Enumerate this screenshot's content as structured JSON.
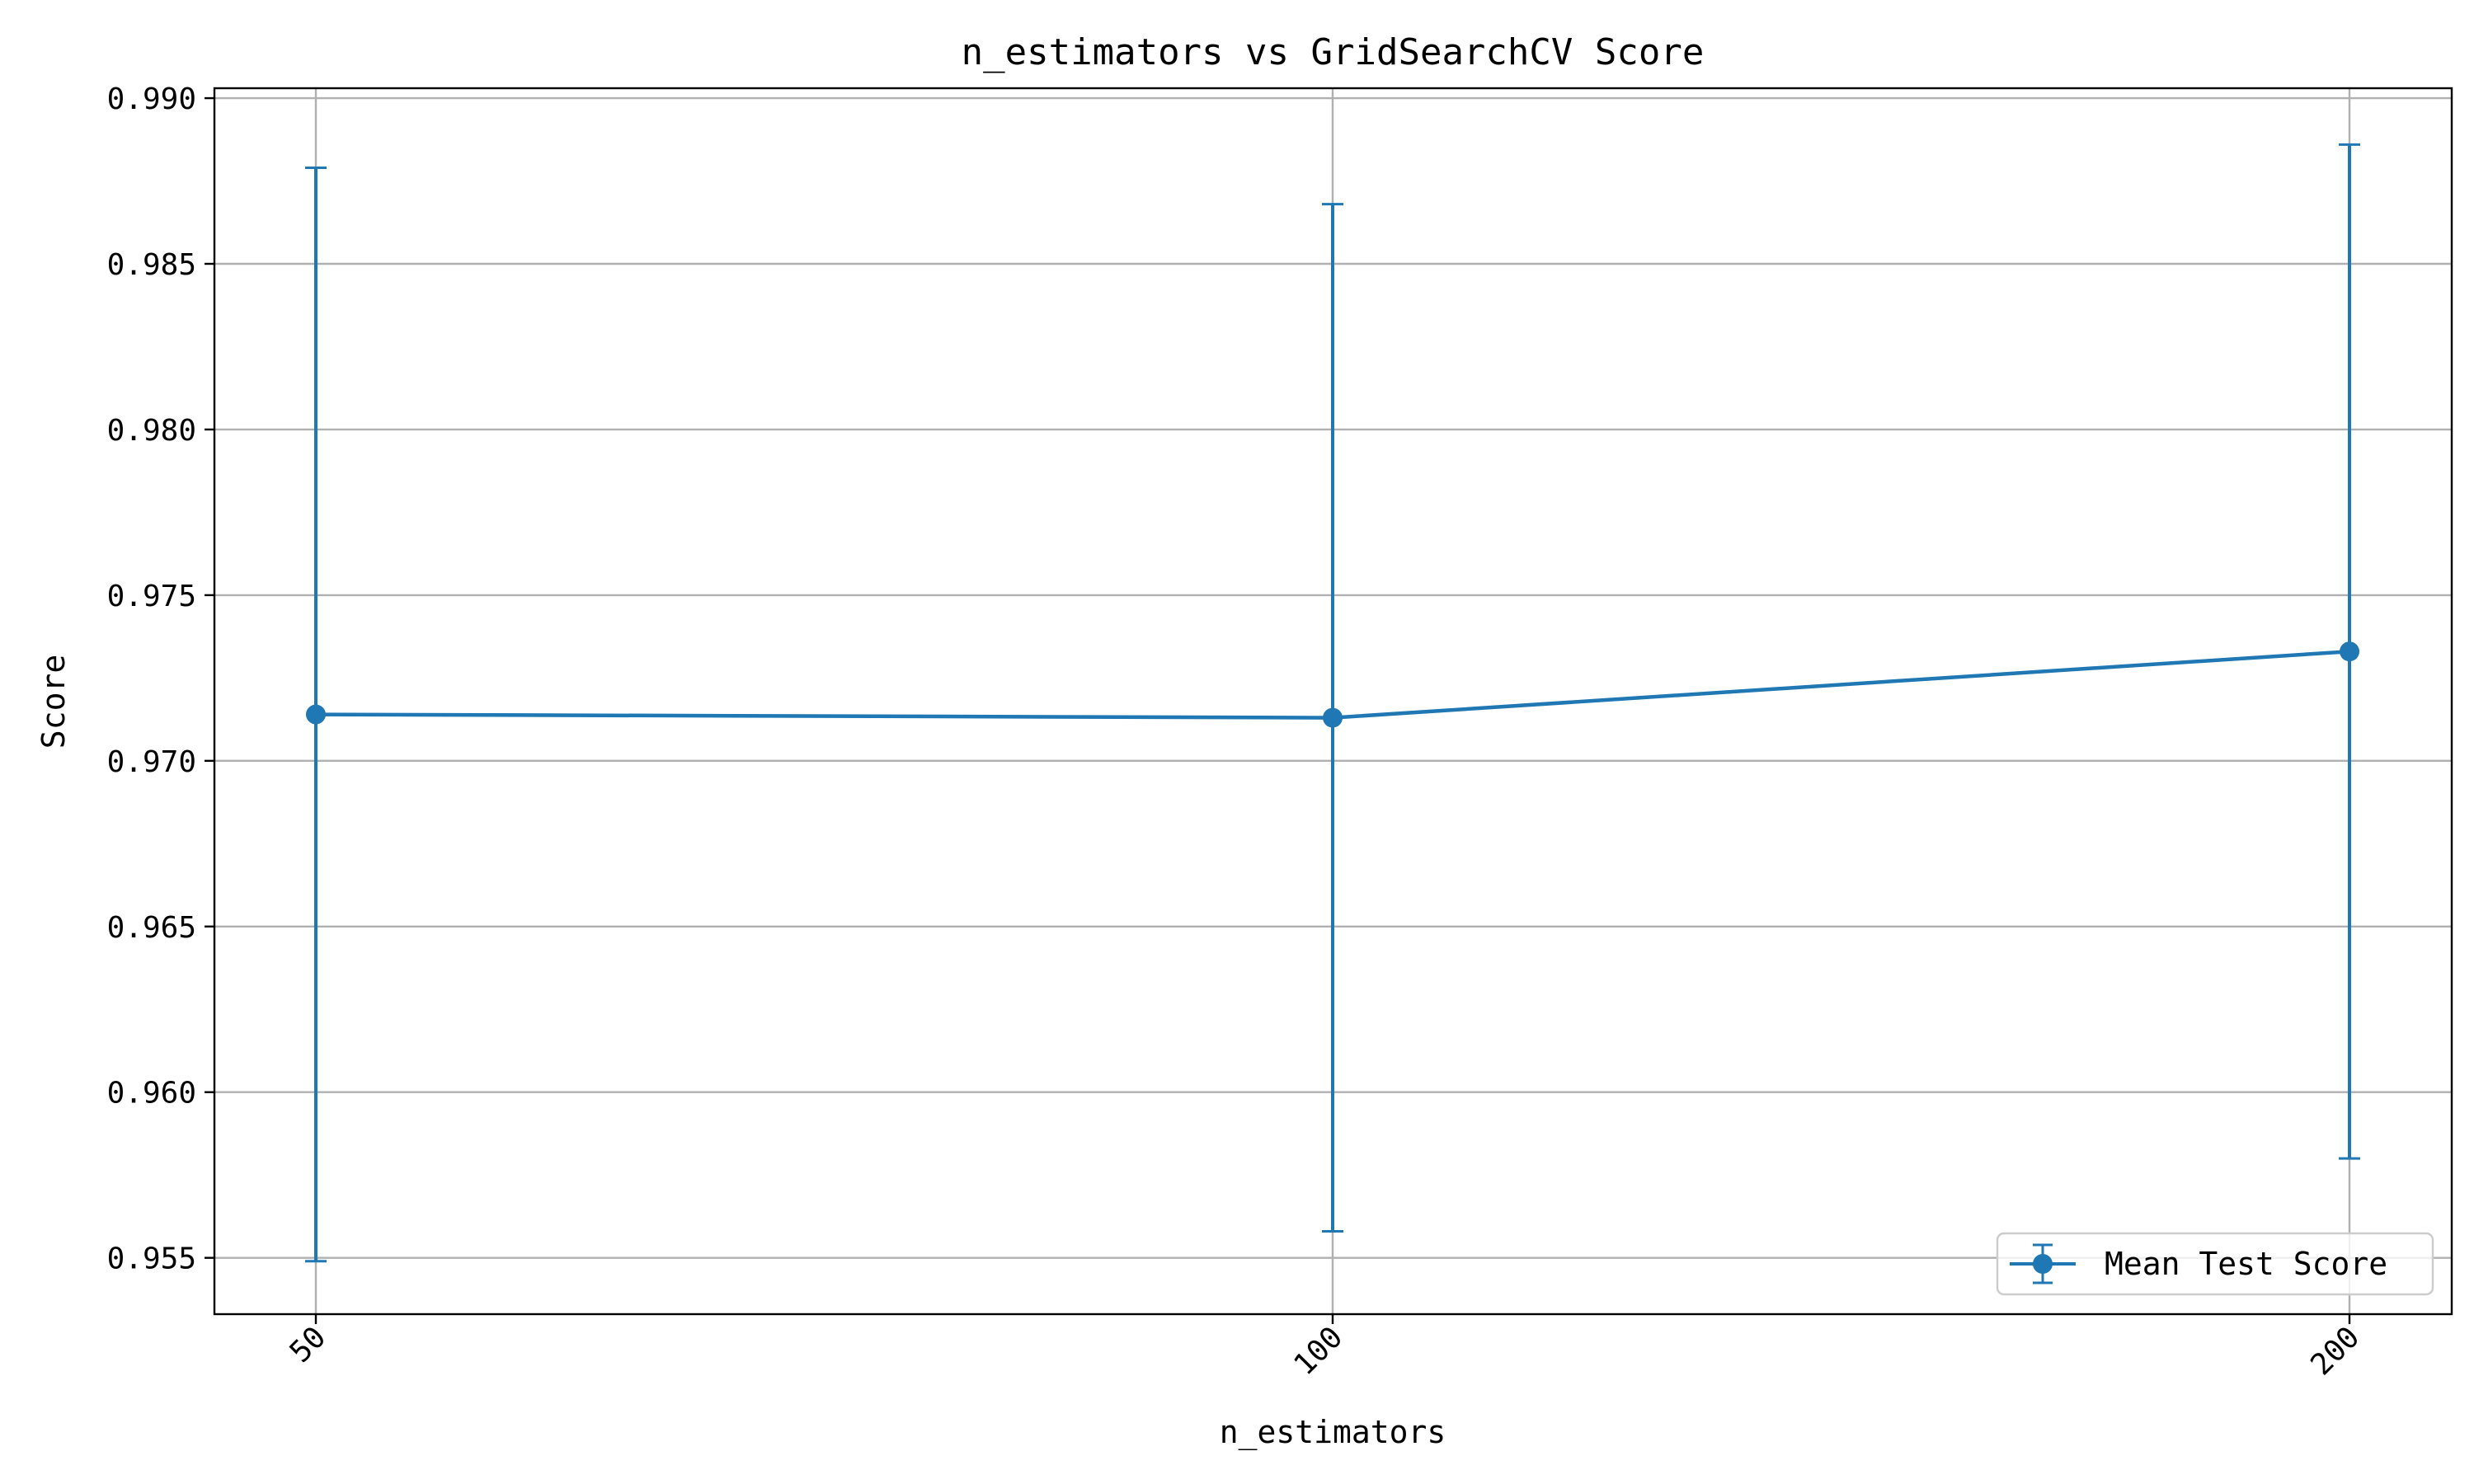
{
  "chart_data": {
    "type": "line",
    "title": "n_estimators vs GridSearchCV Score",
    "xlabel": "n_estimators",
    "ylabel": "Score",
    "categories": [
      "50",
      "100",
      "200"
    ],
    "ylim": [
      0.9533,
      0.9903
    ],
    "yticks": [
      "0.955",
      "0.960",
      "0.965",
      "0.970",
      "0.975",
      "0.980",
      "0.985",
      "0.990"
    ],
    "series": [
      {
        "name": "Mean Test Score",
        "values": [
          0.9714,
          0.9713,
          0.9733
        ],
        "errors": [
          0.0165,
          0.0155,
          0.0153
        ]
      }
    ],
    "grid": true,
    "legend_position": "lower-right",
    "colors": {
      "series": "#1f77b4",
      "grid": "#b0b0b0",
      "axes": "#000000"
    }
  }
}
